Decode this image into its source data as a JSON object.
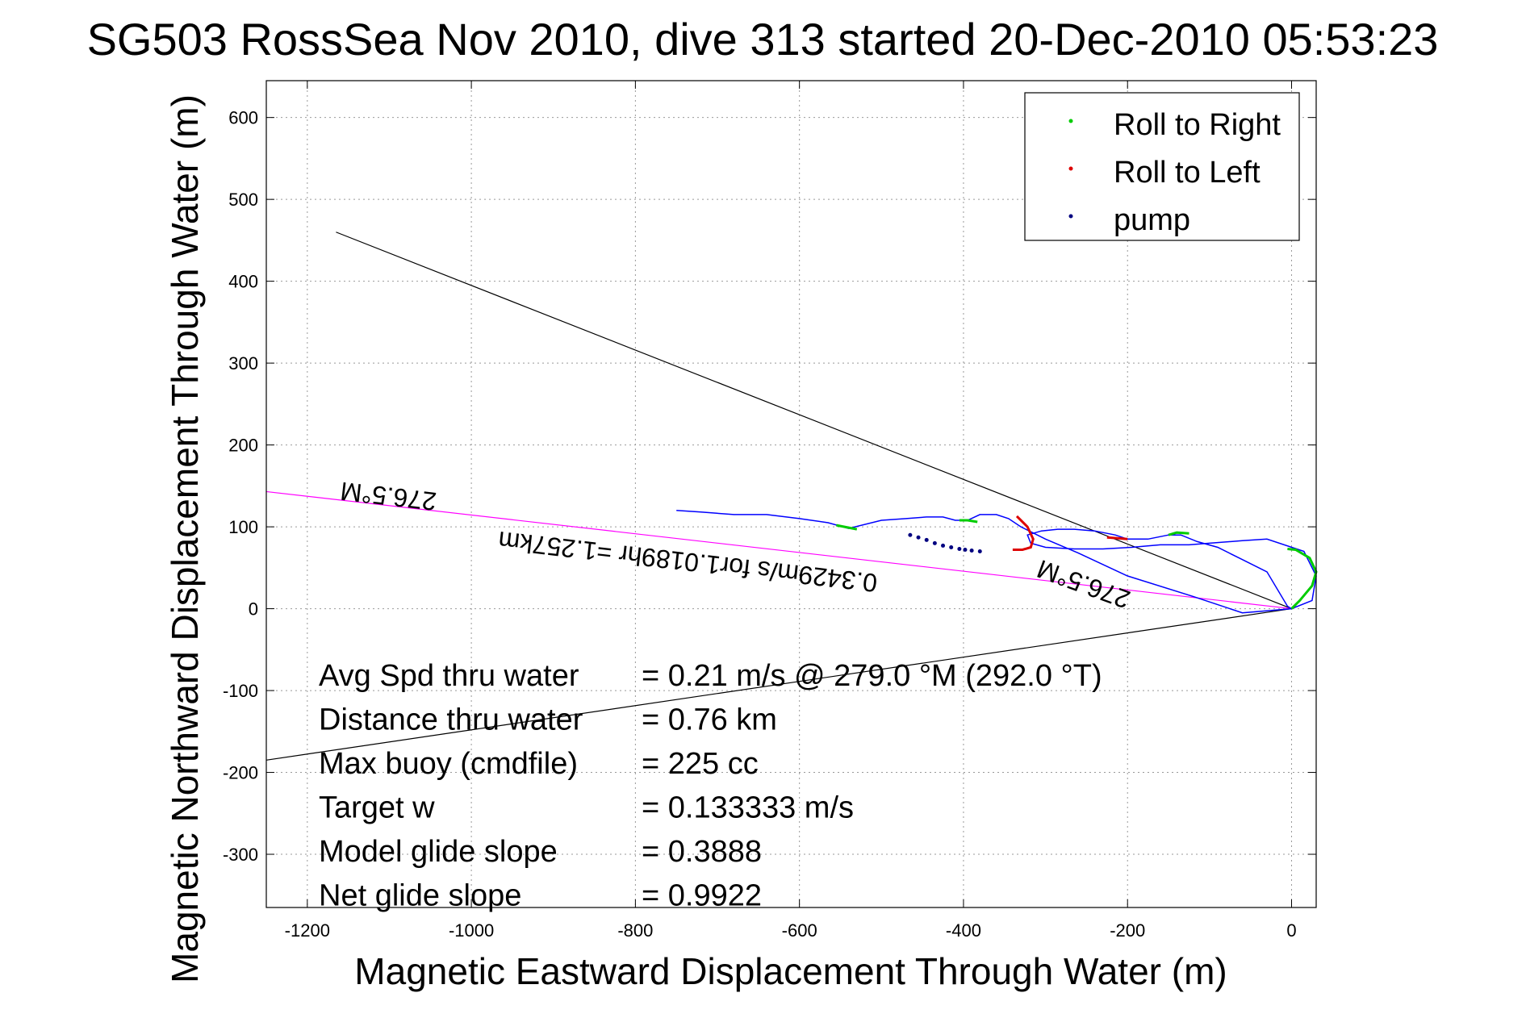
{
  "chart_data": {
    "type": "line",
    "title": "SG503 RossSea Nov 2010, dive 313 started 20-Dec-2010 05:53:23",
    "xlabel": "Magnetic Eastward Displacement Through Water (m)",
    "ylabel": "Magnetic Northward Displacement Through Water (m)",
    "xlim": [
      -1250,
      30
    ],
    "ylim": [
      -365,
      645
    ],
    "x_ticks": [
      -1200,
      -1000,
      -800,
      -600,
      -400,
      -200,
      0
    ],
    "y_ticks": [
      600,
      500,
      400,
      300,
      200,
      100,
      0,
      -100,
      -200,
      -300
    ],
    "grid": true,
    "legend": {
      "position": "top-right",
      "entries": [
        {
          "label": "Roll to Right",
          "color": "#00cc00",
          "marker": "point"
        },
        {
          "label": "Roll to Left",
          "color": "#dd0000",
          "marker": "point"
        },
        {
          "label": "pump",
          "color": "#000080",
          "marker": "point"
        }
      ]
    },
    "track": {
      "color": "#0000ff",
      "x": [
        0,
        -5,
        -30,
        -60,
        -90,
        -115,
        -135,
        -150,
        -175,
        -200,
        -215,
        -240,
        -265,
        -285,
        -305,
        -322,
        -318,
        -300,
        -265,
        -230,
        -195,
        -160,
        -125,
        -100,
        -60,
        -30,
        15,
        30,
        25,
        0,
        -60,
        -120,
        -200,
        -260,
        -300,
        -320,
        -330,
        -345,
        -360,
        -380,
        -395,
        -410,
        -425,
        -445,
        -470,
        -500,
        -540,
        -565,
        -600,
        -640,
        -680,
        -720,
        -750
      ],
      "y": [
        0,
        3,
        45,
        60,
        75,
        82,
        90,
        90,
        85,
        85,
        90,
        95,
        97,
        97,
        95,
        90,
        80,
        75,
        73,
        73,
        75,
        78,
        78,
        80,
        83,
        85,
        70,
        40,
        10,
        0,
        -5,
        15,
        40,
        68,
        85,
        95,
        100,
        110,
        115,
        115,
        108,
        108,
        112,
        112,
        110,
        108,
        98,
        105,
        110,
        115,
        115,
        118,
        120
      ]
    },
    "roll_right_segments": [
      {
        "x": [
          0,
          10,
          25,
          30,
          22,
          5,
          -5
        ],
        "y": [
          0,
          10,
          28,
          45,
          62,
          72,
          73
        ]
      },
      {
        "x": [
          -125,
          -140,
          -150
        ],
        "y": [
          92,
          93,
          90
        ]
      },
      {
        "x": [
          -383,
          -395,
          -405
        ],
        "y": [
          106,
          108,
          108
        ]
      },
      {
        "x": [
          -530,
          -545,
          -555
        ],
        "y": [
          97,
          100,
          102
        ]
      }
    ],
    "roll_left_segments": [
      {
        "x": [
          -200,
          -212,
          -225
        ],
        "y": [
          85,
          86,
          87
        ]
      },
      {
        "x": [
          -335,
          -322,
          -315,
          -318,
          -328,
          -340
        ],
        "y": [
          113,
          100,
          85,
          75,
          72,
          72
        ]
      }
    ],
    "pump_points": {
      "x": [
        -465,
        -455,
        -445,
        -435,
        -425,
        -415,
        -405,
        -398,
        -390,
        -380
      ],
      "y": [
        90,
        87,
        84,
        80,
        77,
        75,
        73,
        72,
        71,
        70
      ]
    },
    "heading_lines": [
      {
        "x": [
          0,
          -1165
        ],
        "y": [
          0,
          460
        ],
        "color": "#000000"
      },
      {
        "x": [
          0,
          -1250
        ],
        "y": [
          0,
          143
        ],
        "color": "#ff00ff"
      },
      {
        "x": [
          0,
          -1250
        ],
        "y": [
          0,
          -185
        ],
        "color": "#000000"
      }
    ],
    "annotations": [
      {
        "text": "276.5°M",
        "x": -1100,
        "y": 148,
        "rotation": 186.5
      },
      {
        "text": "276.5°M",
        "x": -250,
        "y": 40,
        "rotation": 200.0
      },
      {
        "text": "0.3429m/s for1.0189hr =1.257km",
        "x": -735,
        "y": 68,
        "rotation": 186.5
      }
    ],
    "stats": [
      {
        "label": "Avg Spd thru water",
        "value": "=  0.21 m/s @ 279.0 °M (292.0 °T)"
      },
      {
        "label": "Distance thru water",
        "value": "=  0.76 km"
      },
      {
        "label": "Max buoy (cmdfile)",
        "value": "= 225 cc"
      },
      {
        "label": "Target w",
        "value": "= 0.133333 m/s"
      },
      {
        "label": "Model glide slope",
        "value": "= 0.3888"
      },
      {
        "label": "Net glide slope",
        "value": "= 0.9922"
      }
    ]
  }
}
